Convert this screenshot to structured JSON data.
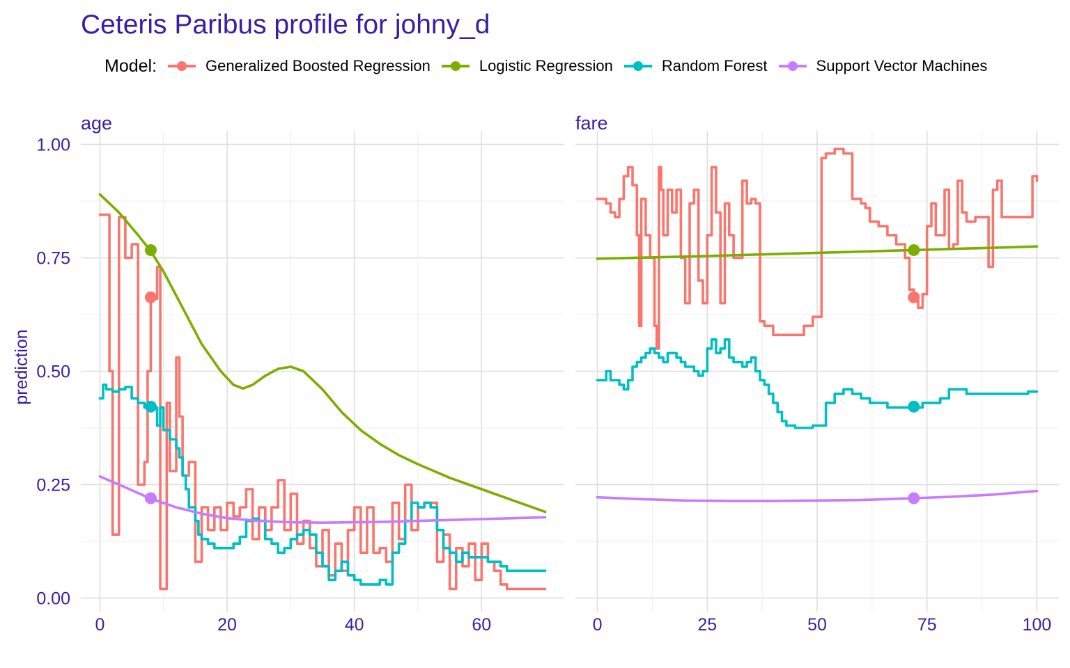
{
  "chart_data": {
    "type": "line",
    "title": "Ceteris Paribus profile for johny_d",
    "legend": {
      "title": "Model:",
      "position": "top"
    },
    "ylabel": "prediction",
    "ylim": [
      -0.03,
      1.03
    ],
    "yticks": [
      0.0,
      0.25,
      0.5,
      0.75,
      1.0
    ],
    "ytick_labels": [
      "0.00",
      "0.25",
      "0.50",
      "0.75",
      "1.00"
    ],
    "grid": true,
    "series_meta": [
      {
        "name": "Generalized Boosted Regression",
        "color": "#F8766D"
      },
      {
        "name": "Logistic Regression",
        "color": "#7CAE00"
      },
      {
        "name": "Random Forest",
        "color": "#00BFC4"
      },
      {
        "name": "Support Vector Machines",
        "color": "#C77CFF"
      }
    ],
    "panels": [
      {
        "variable": "age",
        "xlim": [
          -3,
          73
        ],
        "xticks": [
          0,
          20,
          40,
          60
        ],
        "observation_x": 8,
        "series": [
          {
            "name": "Generalized Boosted Regression",
            "step": true,
            "x": [
              0,
              1.5,
              2,
              3,
              4,
              5,
              6,
              7,
              7.5,
              8,
              9,
              9.5,
              10.5,
              11,
              12,
              12.5,
              13,
              14,
              15,
              16,
              17,
              18,
              19,
              20,
              21,
              22,
              23,
              24,
              25,
              26,
              27,
              28,
              29,
              30,
              31,
              32,
              33,
              34,
              35,
              36,
              37,
              38,
              39,
              40,
              41,
              42,
              43,
              44,
              45,
              46,
              47,
              48,
              49,
              50,
              51,
              52,
              53,
              54,
              55,
              56,
              57,
              58,
              59,
              60,
              61,
              62,
              63,
              64,
              70
            ],
            "y": [
              0.845,
              0.5,
              0.14,
              0.84,
              0.75,
              0.78,
              0.25,
              0.3,
              0.5,
              0.66,
              0.73,
              0.02,
              0.43,
              0.28,
              0.53,
              0.4,
              0.27,
              0.3,
              0.08,
              0.2,
              0.15,
              0.2,
              0.15,
              0.21,
              0.18,
              0.2,
              0.24,
              0.13,
              0.2,
              0.15,
              0.2,
              0.26,
              0.15,
              0.23,
              0.12,
              0.17,
              0.11,
              0.07,
              0.15,
              0.05,
              0.12,
              0.06,
              0.15,
              0.2,
              0.1,
              0.2,
              0.1,
              0.11,
              0.08,
              0.21,
              0.13,
              0.25,
              0.15,
              0.2,
              0.21,
              0.21,
              0.08,
              0.14,
              0.02,
              0.11,
              0.07,
              0.12,
              0.04,
              0.12,
              0.08,
              0.06,
              0.03,
              0.02,
              0.02
            ]
          },
          {
            "name": "Logistic Regression",
            "step": false,
            "x": [
              0,
              3,
              6,
              8,
              10,
              13,
              16,
              19,
              21,
              22.5,
              24,
              26,
              28,
              30,
              32,
              35,
              38,
              41,
              44,
              47,
              50,
              55,
              60,
              65,
              70
            ],
            "y": [
              0.89,
              0.85,
              0.8,
              0.765,
              0.72,
              0.64,
              0.56,
              0.5,
              0.47,
              0.462,
              0.47,
              0.49,
              0.505,
              0.51,
              0.5,
              0.46,
              0.41,
              0.37,
              0.34,
              0.315,
              0.295,
              0.265,
              0.24,
              0.215,
              0.19
            ]
          },
          {
            "name": "Random Forest",
            "step": true,
            "x": [
              0,
              0.5,
              1,
              2,
              3,
              4,
              5,
              6,
              7,
              8,
              9,
              9.5,
              10,
              11,
              12,
              12.5,
              13,
              13.5,
              14,
              15,
              15.5,
              16,
              17,
              18,
              20,
              21,
              22,
              23,
              24,
              25,
              26,
              27,
              28,
              29,
              30,
              31,
              32,
              33,
              34,
              35,
              36,
              37,
              38,
              39,
              40,
              41,
              42,
              43,
              44,
              45,
              46,
              47,
              48,
              49,
              50,
              51,
              52,
              53,
              54,
              55,
              56,
              57,
              58,
              59,
              60,
              61,
              62,
              63,
              64,
              70
            ],
            "y": [
              0.44,
              0.47,
              0.46,
              0.455,
              0.46,
              0.465,
              0.44,
              0.43,
              0.42,
              0.42,
              0.38,
              0.42,
              0.37,
              0.35,
              0.33,
              0.31,
              0.27,
              0.24,
              0.2,
              0.17,
              0.14,
              0.13,
              0.12,
              0.11,
              0.11,
              0.12,
              0.135,
              0.17,
              0.175,
              0.17,
              0.13,
              0.12,
              0.1,
              0.11,
              0.13,
              0.14,
              0.15,
              0.14,
              0.1,
              0.07,
              0.04,
              0.06,
              0.08,
              0.05,
              0.04,
              0.03,
              0.03,
              0.03,
              0.04,
              0.03,
              0.1,
              0.12,
              0.17,
              0.21,
              0.2,
              0.21,
              0.2,
              0.15,
              0.11,
              0.1,
              0.08,
              0.1,
              0.09,
              0.09,
              0.09,
              0.08,
              0.08,
              0.07,
              0.06,
              0.06
            ]
          },
          {
            "name": "Support Vector Machines",
            "step": false,
            "x": [
              0,
              4,
              8,
              12,
              16,
              20,
              25,
              30,
              35,
              40,
              45,
              50,
              55,
              60,
              65,
              70
            ],
            "y": [
              0.268,
              0.244,
              0.219,
              0.2,
              0.186,
              0.176,
              0.17,
              0.167,
              0.166,
              0.167,
              0.168,
              0.17,
              0.172,
              0.174,
              0.176,
              0.178
            ]
          }
        ],
        "points": [
          {
            "name": "Generalized Boosted Regression",
            "x": 8,
            "y": 0.663
          },
          {
            "name": "Logistic Regression",
            "x": 8,
            "y": 0.767
          },
          {
            "name": "Random Forest",
            "x": 8,
            "y": 0.422
          },
          {
            "name": "Support Vector Machines",
            "x": 8,
            "y": 0.22
          }
        ]
      },
      {
        "variable": "fare",
        "xlim": [
          -5,
          105
        ],
        "xticks": [
          0,
          25,
          50,
          75,
          100
        ],
        "observation_x": 72,
        "series": [
          {
            "name": "Generalized Boosted Regression",
            "step": true,
            "x": [
              0,
              2,
              3,
              4,
              5,
              6,
              7,
              8,
              9,
              9.5,
              10,
              11,
              12,
              13,
              13.5,
              14,
              14.5,
              15,
              16,
              17,
              18,
              19,
              20,
              21,
              22,
              23,
              24,
              25,
              26,
              27,
              28,
              29,
              30,
              31,
              32,
              33,
              34,
              35,
              36,
              37,
              38,
              40,
              41,
              43,
              45,
              47,
              49,
              51,
              52,
              54,
              56,
              58,
              60,
              61,
              62,
              64,
              66,
              68,
              70,
              71,
              72,
              73,
              74,
              75,
              76,
              77,
              79,
              80,
              81,
              82,
              83,
              84,
              86,
              88,
              89,
              90,
              91,
              92,
              94,
              96,
              99,
              100
            ],
            "y": [
              0.88,
              0.87,
              0.85,
              0.84,
              0.88,
              0.93,
              0.95,
              0.91,
              0.8,
              0.6,
              0.88,
              0.8,
              0.75,
              0.6,
              0.55,
              0.95,
              0.9,
              0.8,
              0.9,
              0.85,
              0.9,
              0.75,
              0.65,
              0.87,
              0.9,
              0.7,
              0.65,
              0.8,
              0.95,
              0.85,
              0.65,
              0.87,
              0.8,
              0.75,
              0.75,
              0.92,
              0.87,
              0.88,
              0.87,
              0.61,
              0.6,
              0.58,
              0.58,
              0.58,
              0.58,
              0.6,
              0.62,
              0.97,
              0.98,
              0.99,
              0.98,
              0.88,
              0.87,
              0.86,
              0.83,
              0.82,
              0.8,
              0.78,
              0.75,
              0.68,
              0.66,
              0.64,
              0.67,
              0.82,
              0.87,
              0.8,
              0.9,
              0.77,
              0.78,
              0.92,
              0.85,
              0.83,
              0.84,
              0.84,
              0.73,
              0.9,
              0.92,
              0.84,
              0.84,
              0.84,
              0.93,
              0.92
            ]
          },
          {
            "name": "Logistic Regression",
            "step": false,
            "x": [
              0,
              25,
              50,
              72,
              100
            ],
            "y": [
              0.748,
              0.754,
              0.761,
              0.767,
              0.775
            ]
          },
          {
            "name": "Random Forest",
            "step": true,
            "x": [
              0,
              2,
              3,
              5,
              6,
              7,
              8,
              9,
              10,
              11,
              12,
              13,
              14,
              15,
              16,
              17,
              18,
              19,
              20,
              21,
              22,
              23,
              24,
              25,
              26,
              27,
              28,
              29,
              30,
              31,
              32,
              33,
              34,
              35,
              36,
              37,
              38,
              39,
              40,
              41,
              42,
              43,
              44,
              45,
              47,
              49,
              51,
              52,
              54,
              56,
              58,
              60,
              62,
              64,
              66,
              68,
              70,
              72,
              74,
              76,
              78,
              80,
              82,
              84,
              86,
              88,
              90,
              92,
              95,
              98,
              100
            ],
            "y": [
              0.48,
              0.5,
              0.48,
              0.47,
              0.46,
              0.48,
              0.51,
              0.52,
              0.53,
              0.54,
              0.55,
              0.54,
              0.53,
              0.52,
              0.54,
              0.54,
              0.53,
              0.52,
              0.51,
              0.51,
              0.5,
              0.49,
              0.5,
              0.55,
              0.57,
              0.54,
              0.55,
              0.57,
              0.53,
              0.52,
              0.52,
              0.51,
              0.52,
              0.53,
              0.5,
              0.48,
              0.47,
              0.45,
              0.43,
              0.41,
              0.39,
              0.38,
              0.38,
              0.375,
              0.375,
              0.38,
              0.38,
              0.43,
              0.45,
              0.46,
              0.45,
              0.44,
              0.43,
              0.43,
              0.42,
              0.42,
              0.42,
              0.42,
              0.43,
              0.43,
              0.44,
              0.46,
              0.46,
              0.45,
              0.45,
              0.45,
              0.45,
              0.45,
              0.45,
              0.455,
              0.455
            ]
          },
          {
            "name": "Support Vector Machines",
            "step": false,
            "x": [
              0,
              10,
              20,
              30,
              40,
              50,
              60,
              72,
              80,
              90,
              100
            ],
            "y": [
              0.222,
              0.218,
              0.215,
              0.214,
              0.214,
              0.215,
              0.216,
              0.22,
              0.223,
              0.228,
              0.236
            ]
          }
        ],
        "points": [
          {
            "name": "Generalized Boosted Regression",
            "x": 72,
            "y": 0.663
          },
          {
            "name": "Logistic Regression",
            "x": 72,
            "y": 0.767
          },
          {
            "name": "Random Forest",
            "x": 72,
            "y": 0.422
          },
          {
            "name": "Support Vector Machines",
            "x": 72,
            "y": 0.22
          }
        ]
      }
    ]
  }
}
